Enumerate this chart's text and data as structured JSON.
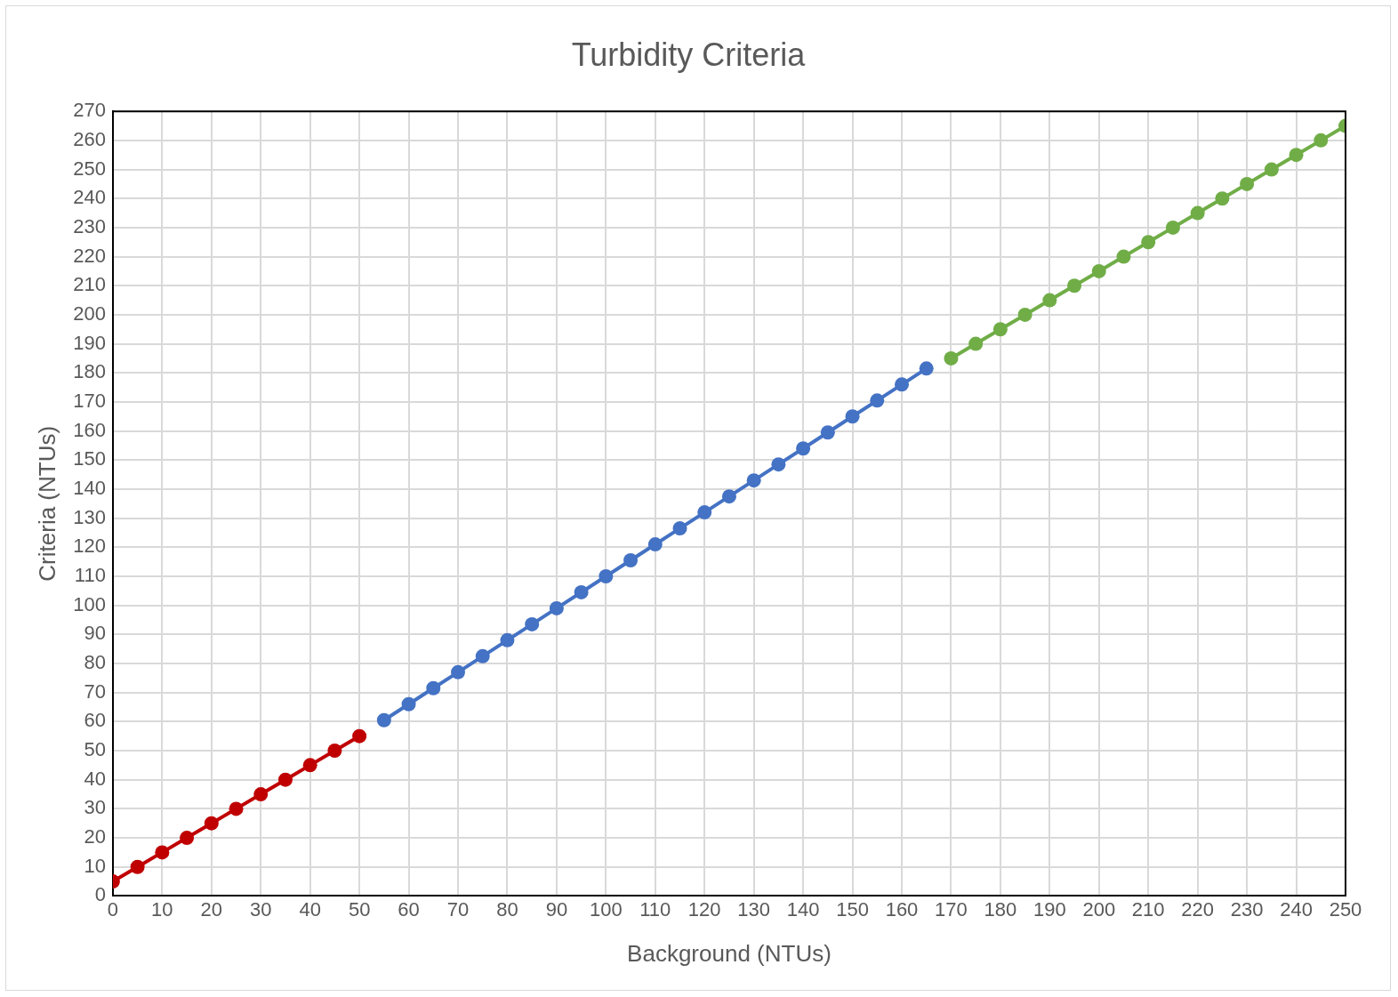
{
  "chart_data": {
    "type": "line",
    "title": "Turbidity Criteria",
    "xlabel": "Background (NTUs)",
    "ylabel": "Criteria (NTUs)",
    "xlim": [
      0,
      250
    ],
    "xticks": [
      0,
      10,
      20,
      30,
      40,
      50,
      60,
      70,
      80,
      90,
      100,
      110,
      120,
      130,
      140,
      150,
      160,
      170,
      180,
      190,
      200,
      210,
      220,
      230,
      240,
      250
    ],
    "ylim": [
      0,
      270
    ],
    "yticks": [
      0,
      10,
      20,
      30,
      40,
      50,
      60,
      70,
      80,
      90,
      100,
      110,
      120,
      130,
      140,
      150,
      160,
      170,
      180,
      190,
      200,
      210,
      220,
      230,
      240,
      250,
      260,
      270
    ],
    "grid": true,
    "legend": false,
    "marker": "circle",
    "line_style": "solid",
    "series": [
      {
        "color": "#c00000",
        "x": [
          0,
          5,
          10,
          15,
          20,
          25,
          30,
          35,
          40,
          45,
          50
        ],
        "values": [
          5,
          10,
          15,
          20,
          25,
          30,
          35,
          40,
          45,
          50,
          55
        ]
      },
      {
        "color": "#4472c4",
        "x": [
          55,
          60,
          65,
          70,
          75,
          80,
          85,
          90,
          95,
          100,
          105,
          110,
          115,
          120,
          125,
          130,
          135,
          140,
          145,
          150,
          155,
          160,
          165
        ],
        "values": [
          60.5,
          66,
          71.5,
          77,
          82.5,
          88,
          93.5,
          99,
          104.5,
          110,
          115.5,
          121,
          126.5,
          132,
          137.5,
          143,
          148.5,
          154,
          159.5,
          165,
          170.5,
          176,
          181.5
        ]
      },
      {
        "color": "#70ad47",
        "x": [
          170,
          175,
          180,
          185,
          190,
          195,
          200,
          205,
          210,
          215,
          220,
          225,
          230,
          235,
          240,
          245,
          250
        ],
        "values": [
          185,
          190,
          195,
          200,
          205,
          210,
          215,
          220,
          225,
          230,
          235,
          240,
          245,
          250,
          255,
          260,
          265
        ]
      }
    ]
  }
}
